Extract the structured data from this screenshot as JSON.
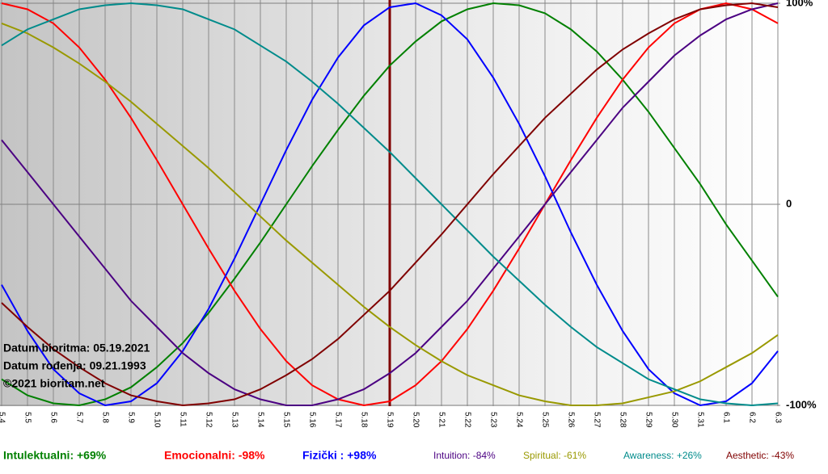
{
  "chart_data": {
    "type": "line",
    "categories": [
      "5.4",
      "5.5",
      "5.6",
      "5.7",
      "5.8",
      "5.9",
      "5.10",
      "5.11",
      "5.12",
      "5.13",
      "5.14",
      "5.15",
      "5.16",
      "5.17",
      "5.18",
      "5.19",
      "5.20",
      "5.21",
      "5.22",
      "5.23",
      "5.24",
      "5.25",
      "5.26",
      "5.27",
      "5.28",
      "5.29",
      "5.30",
      "5.31",
      "6.1",
      "6.2",
      "6.3"
    ],
    "series": [
      {
        "name": "Intulektualni: +69%",
        "color": "#008000",
        "values": [
          -87,
          -95,
          -99,
          -100,
          -97,
          -91,
          -81,
          -69,
          -54,
          -37,
          -19,
          0,
          19,
          37,
          54,
          69,
          81,
          91,
          97,
          100,
          99,
          95,
          87,
          76,
          62,
          46,
          28,
          10,
          -10,
          -28,
          -46
        ]
      },
      {
        "name": "Emocionalni: -98%",
        "color": "#ff0000",
        "values": [
          100,
          97,
          90,
          78,
          62,
          43,
          22,
          0,
          -22,
          -43,
          -62,
          -78,
          -90,
          -97,
          -100,
          -98,
          -90,
          -78,
          -62,
          -43,
          -22,
          0,
          22,
          43,
          62,
          78,
          90,
          97,
          100,
          97,
          90
        ]
      },
      {
        "name": "Fizički : +98%",
        "color": "#0000ff",
        "values": [
          -40,
          -63,
          -82,
          -94,
          -100,
          -98,
          -89,
          -73,
          -52,
          -27,
          0,
          27,
          52,
          73,
          89,
          98,
          100,
          94,
          82,
          63,
          40,
          14,
          -14,
          -40,
          -63,
          -82,
          -94,
          -100,
          -98,
          -89,
          -73
        ]
      },
      {
        "name": "Intuition: -84%",
        "color": "#4b0082",
        "values": [
          32,
          16,
          0,
          -16,
          -32,
          -48,
          -61,
          -74,
          -84,
          -92,
          -97,
          -100,
          -100,
          -97,
          -92,
          -84,
          -74,
          -61,
          -48,
          -32,
          -16,
          0,
          16,
          32,
          48,
          61,
          74,
          84,
          92,
          97,
          100
        ]
      },
      {
        "name": "Spiritual: -61%",
        "color": "#999900",
        "values": [
          90,
          85,
          78,
          70,
          61,
          51,
          40,
          29,
          18,
          6,
          -6,
          -18,
          -29,
          -40,
          -51,
          -61,
          -70,
          -78,
          -85,
          -90,
          -95,
          -98,
          -100,
          -100,
          -99,
          -96,
          -93,
          -88,
          -81,
          -74,
          -65
        ]
      },
      {
        "name": "Awareness: +26%",
        "color": "#008b8b",
        "values": [
          79,
          87,
          92,
          97,
          99,
          100,
          99,
          97,
          92,
          87,
          79,
          71,
          61,
          50,
          38,
          26,
          13,
          0,
          -13,
          -26,
          -38,
          -50,
          -61,
          -71,
          -79,
          -87,
          -92,
          -97,
          -99,
          -100,
          -99
        ]
      },
      {
        "name": "Aesthetic: -43%",
        "color": "#800000",
        "values": [
          -49,
          -61,
          -72,
          -81,
          -89,
          -95,
          -98,
          -100,
          -99,
          -97,
          -92,
          -85,
          -77,
          -67,
          -55,
          -43,
          -29,
          -15,
          0,
          15,
          29,
          43,
          55,
          67,
          77,
          85,
          92,
          97,
          99,
          100,
          98
        ]
      }
    ],
    "ylim": [
      -100,
      100
    ],
    "yticks": [
      {
        "value": 100,
        "label": "100%"
      },
      0,
      {
        "value": -100,
        "label": "-100%"
      }
    ],
    "grid": true,
    "marker": {
      "x": "5.19",
      "color": "#800000"
    },
    "annotations": [
      "Datum bioritma: 05.19.2021",
      "Datum rođenja: 09.21.1993",
      "©2021 bioritam.net"
    ]
  }
}
